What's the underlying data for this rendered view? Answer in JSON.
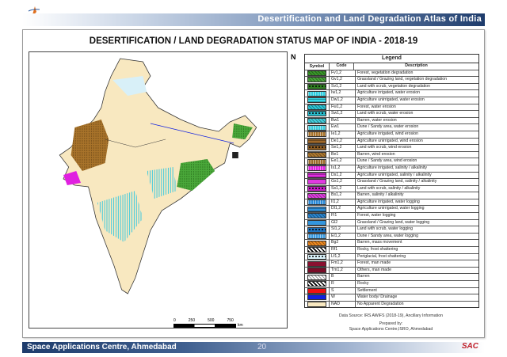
{
  "header": {
    "title": "Desertification and Land Degradation Atlas of India",
    "logo_text": "इसरो isro"
  },
  "map_title": "DESERTIFICATION / LAND DEGRADATION STATUS MAP OF INDIA - 2018-19",
  "north_label": "N",
  "scale": {
    "ticks": [
      "0",
      "250",
      "500",
      "750"
    ],
    "unit": "km"
  },
  "legend": {
    "title": "Legend",
    "columns": [
      "Symbol",
      "Code",
      "Description"
    ],
    "items": [
      {
        "code": "Fv1,2",
        "desc": "Forest, vegetation degradation",
        "color": "#3a9a2a",
        "pattern": "hatch"
      },
      {
        "code": "Gv1,2",
        "desc": "Grassland / Grazing land, vegetation degradation",
        "color": "#4aa83a",
        "pattern": "hatch"
      },
      {
        "code": "Sv1,2",
        "desc": "Land with scrub, vegetation degradation",
        "color": "#2f7f22",
        "pattern": "dots"
      },
      {
        "code": "Iw1,2",
        "desc": "Agriculture irrigated, water erosion",
        "color": "#2fd0e0",
        "pattern": "vert"
      },
      {
        "code": "Dw1,2",
        "desc": "Agriculture unirrigated, water erosion",
        "color": "#35d8e6",
        "pattern": "horiz"
      },
      {
        "code": "Fw1,2",
        "desc": "Forest, water erosion",
        "color": "#2cc8d8",
        "pattern": "hatch"
      },
      {
        "code": "Sw1,2",
        "desc": "Land with scrub, water erosion",
        "color": "#27bccc",
        "pattern": "dots"
      },
      {
        "code": "Bw1",
        "desc": "Barren, water erosion",
        "color": "#45d2e2",
        "pattern": "hatch"
      },
      {
        "code": "Ew1",
        "desc": "Dune / Sandy area, water erosion",
        "color": "#3ccbdc",
        "pattern": "vert"
      },
      {
        "code": "Ie1,2",
        "desc": "Agriculture irrigated, wind erosion",
        "color": "#a8732a",
        "pattern": "vert"
      },
      {
        "code": "De1,2",
        "desc": "Agriculture unirrigated, wind erosion",
        "color": "#a0692a",
        "pattern": "horiz"
      },
      {
        "code": "Se1,2",
        "desc": "Land with scrub, wind erosion",
        "color": "#8a5a22",
        "pattern": "dots"
      },
      {
        "code": "Be1",
        "desc": "Barren, wind erosion",
        "color": "#b07a30",
        "pattern": "hatch"
      },
      {
        "code": "Ee1,2",
        "desc": "Dune / Sandy area, wind erosion",
        "color": "#9c6c2c",
        "pattern": "vert"
      },
      {
        "code": "Is1,2",
        "desc": "Agriculture irrigated, salinity / alkalinity",
        "color": "#e020e0",
        "pattern": "vert"
      },
      {
        "code": "Ds1,2",
        "desc": "Agriculture unirrigated, salinity / alkalinity",
        "color": "#e22ee2",
        "pattern": "horiz"
      },
      {
        "code": "Gs1,2",
        "desc": "Grassland / Grazing land, salinity / alkalinity",
        "color": "#e03ae0",
        "pattern": "none"
      },
      {
        "code": "Ss1,2",
        "desc": "Land with scrub, salinity / alkalinity",
        "color": "#c81ec8",
        "pattern": "dots"
      },
      {
        "code": "Bs1,2",
        "desc": "Barren, salinity / alkalinity",
        "color": "#e040e0",
        "pattern": "hatch"
      },
      {
        "code": "Il1,2",
        "desc": "Agriculture irrigated, water logging",
        "color": "#2a8ad8",
        "pattern": "vert"
      },
      {
        "code": "Dl1,2",
        "desc": "Agriculture unirrigated, water logging",
        "color": "#2f92dc",
        "pattern": "horiz"
      },
      {
        "code": "Fl1",
        "desc": "Forest, water logging",
        "color": "#2a86d0",
        "pattern": "hatch"
      },
      {
        "code": "Gl2",
        "desc": "Grassland / Grazing land, water logging",
        "color": "#3396de",
        "pattern": "none"
      },
      {
        "code": "Sl1,2",
        "desc": "Land with scrub, water logging",
        "color": "#1f74c0",
        "pattern": "dots"
      },
      {
        "code": "El1,2",
        "desc": "Dune / Sandy area, water logging",
        "color": "#3a9ae0",
        "pattern": "vert"
      },
      {
        "code": "Bg2",
        "desc": "Barren, mass movement",
        "color": "#f08a20",
        "pattern": "hatch"
      },
      {
        "code": "Rf1",
        "desc": "Rocky, frost shattering",
        "color": "#ffffff",
        "pattern": "blackhatch"
      },
      {
        "code": "Lf1,2",
        "desc": "Periglacial, frost shattering",
        "color": "#d8f0f8",
        "pattern": "dots"
      },
      {
        "code": "Fm1,2",
        "desc": "Forest, man made",
        "color": "#8a1030",
        "pattern": "none"
      },
      {
        "code": "Tm1,2",
        "desc": "Others, man made",
        "color": "#7a0c28",
        "pattern": "none"
      },
      {
        "code": "B",
        "desc": "Barren",
        "color": "#ffffff",
        "pattern": "greyhatch"
      },
      {
        "code": "R",
        "desc": "Rocky",
        "color": "#ffffff",
        "pattern": "blackhatch"
      },
      {
        "code": "S",
        "desc": "Settlement",
        "color": "#ee1010",
        "pattern": "none"
      },
      {
        "code": "W",
        "desc": "Water body/ Drainage",
        "color": "#1020e0",
        "pattern": "none"
      },
      {
        "code": "NAD",
        "desc": "No Apparent Degradation",
        "color": "#f8e8c0",
        "pattern": "none"
      }
    ]
  },
  "source": {
    "data_source": "Data Source: IRS AWiFS (2018-19), Ancillary Information",
    "prepared_by": "Prepared by:",
    "preparer": "Space Applications Centre,ISRO, Ahmedabad"
  },
  "footer": {
    "org": "Space Applications Centre, Ahmedabad",
    "page": "20",
    "logo_text": "SAC"
  }
}
